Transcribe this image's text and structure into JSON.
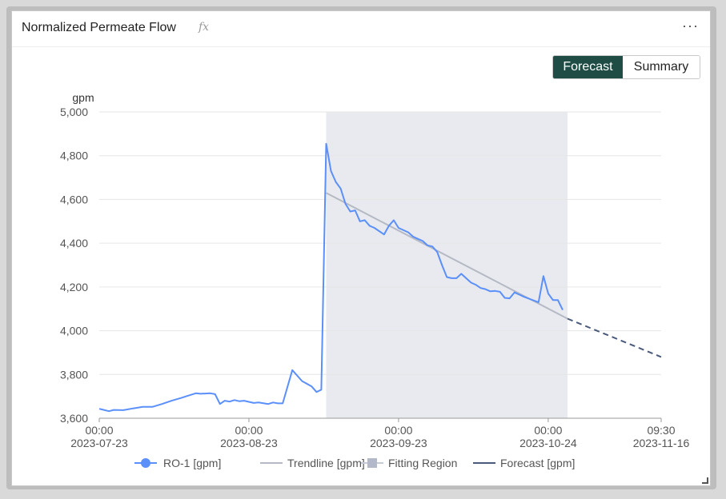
{
  "card": {
    "title": "Normalized Permeate Flow",
    "fx_label": "fx",
    "more_label": "···"
  },
  "toggle": {
    "forecast_label": "Forecast",
    "summary_label": "Summary"
  },
  "colors": {
    "series": "#5b8ff9",
    "trend": "#b4b9c4",
    "fitting_region": "#e8eaef",
    "forecast": "#4a5a7a",
    "toggle_active": "#1f4d45"
  },
  "chart_data": {
    "type": "line",
    "ylabel": "gpm",
    "ylim": [
      3600,
      5000
    ],
    "yticks": [
      3600,
      3800,
      4000,
      4200,
      4400,
      4600,
      4800,
      5000
    ],
    "ytick_labels": [
      "3,600",
      "3,800",
      "4,000",
      "4,200",
      "4,400",
      "4,600",
      "4,800",
      "5,000"
    ],
    "xlim": [
      "2023-07-23T00:00",
      "2023-11-16T09:30"
    ],
    "xticks": [
      {
        "value": "2023-07-23T00:00",
        "time": "00:00",
        "date": "2023-07-23"
      },
      {
        "value": "2023-08-23T00:00",
        "time": "00:00",
        "date": "2023-08-23"
      },
      {
        "value": "2023-09-23T00:00",
        "time": "00:00",
        "date": "2023-09-23"
      },
      {
        "value": "2023-10-24T00:00",
        "time": "00:00",
        "date": "2023-10-24"
      },
      {
        "value": "2023-11-16T09:30",
        "time": "09:30",
        "date": "2023-11-16"
      }
    ],
    "grid": true,
    "legend_position": "bottom",
    "fitting_region": {
      "start": "2023-09-08",
      "end": "2023-10-28"
    },
    "series": [
      {
        "name": "RO-1 [gpm]",
        "style": "line",
        "points": [
          [
            "2023-07-23",
            3643
          ],
          [
            "2023-07-25",
            3632
          ],
          [
            "2023-07-26",
            3638
          ],
          [
            "2023-07-28",
            3637
          ],
          [
            "2023-07-30",
            3645
          ],
          [
            "2023-08-01",
            3652
          ],
          [
            "2023-08-03",
            3652
          ],
          [
            "2023-08-05",
            3665
          ],
          [
            "2023-08-07",
            3680
          ],
          [
            "2023-08-09",
            3693
          ],
          [
            "2023-08-10",
            3700
          ],
          [
            "2023-08-12",
            3714
          ],
          [
            "2023-08-13",
            3712
          ],
          [
            "2023-08-15",
            3714
          ],
          [
            "2023-08-16",
            3710
          ],
          [
            "2023-08-17",
            3665
          ],
          [
            "2023-08-18",
            3680
          ],
          [
            "2023-08-19",
            3676
          ],
          [
            "2023-08-20",
            3683
          ],
          [
            "2023-08-21",
            3678
          ],
          [
            "2023-08-22",
            3680
          ],
          [
            "2023-08-24",
            3670
          ],
          [
            "2023-08-25",
            3672
          ],
          [
            "2023-08-27",
            3665
          ],
          [
            "2023-08-28",
            3672
          ],
          [
            "2023-08-29",
            3668
          ],
          [
            "2023-08-30",
            3668
          ],
          [
            "2023-09-01",
            3820
          ],
          [
            "2023-09-03",
            3770
          ],
          [
            "2023-09-05",
            3745
          ],
          [
            "2023-09-06",
            3720
          ],
          [
            "2023-09-07",
            3730
          ],
          [
            "2023-09-08",
            4855
          ],
          [
            "2023-09-09",
            4730
          ],
          [
            "2023-09-10",
            4680
          ],
          [
            "2023-09-11",
            4650
          ],
          [
            "2023-09-12",
            4580
          ],
          [
            "2023-09-13",
            4545
          ],
          [
            "2023-09-14",
            4550
          ],
          [
            "2023-09-15",
            4500
          ],
          [
            "2023-09-16",
            4505
          ],
          [
            "2023-09-17",
            4480
          ],
          [
            "2023-09-18",
            4470
          ],
          [
            "2023-09-20",
            4440
          ],
          [
            "2023-09-21",
            4480
          ],
          [
            "2023-09-22",
            4505
          ],
          [
            "2023-09-23",
            4470
          ],
          [
            "2023-09-25",
            4450
          ],
          [
            "2023-09-26",
            4430
          ],
          [
            "2023-09-27",
            4420
          ],
          [
            "2023-09-28",
            4410
          ],
          [
            "2023-09-29",
            4390
          ],
          [
            "2023-09-30",
            4385
          ],
          [
            "2023-10-01",
            4360
          ],
          [
            "2023-10-02",
            4300
          ],
          [
            "2023-10-03",
            4245
          ],
          [
            "2023-10-04",
            4240
          ],
          [
            "2023-10-05",
            4240
          ],
          [
            "2023-10-06",
            4260
          ],
          [
            "2023-10-08",
            4220
          ],
          [
            "2023-10-09",
            4210
          ],
          [
            "2023-10-10",
            4195
          ],
          [
            "2023-10-11",
            4190
          ],
          [
            "2023-10-12",
            4180
          ],
          [
            "2023-10-13",
            4182
          ],
          [
            "2023-10-14",
            4178
          ],
          [
            "2023-10-15",
            4150
          ],
          [
            "2023-10-16",
            4148
          ],
          [
            "2023-10-17",
            4175
          ],
          [
            "2023-10-18",
            4165
          ],
          [
            "2023-10-19",
            4155
          ],
          [
            "2023-10-22",
            4130
          ],
          [
            "2023-10-23",
            4250
          ],
          [
            "2023-10-24",
            4170
          ],
          [
            "2023-10-25",
            4140
          ],
          [
            "2023-10-26",
            4140
          ],
          [
            "2023-10-27",
            4095
          ]
        ]
      },
      {
        "name": "Trendline [gpm]",
        "style": "line",
        "points": [
          [
            "2023-09-08",
            4630
          ],
          [
            "2023-10-28",
            4055
          ]
        ]
      },
      {
        "name": "Fitting Region",
        "style": "area"
      },
      {
        "name": "Forecast [gpm]",
        "style": "dashed",
        "points": [
          [
            "2023-10-28",
            4055
          ],
          [
            "2023-11-16T09:30",
            3880
          ]
        ]
      }
    ]
  }
}
